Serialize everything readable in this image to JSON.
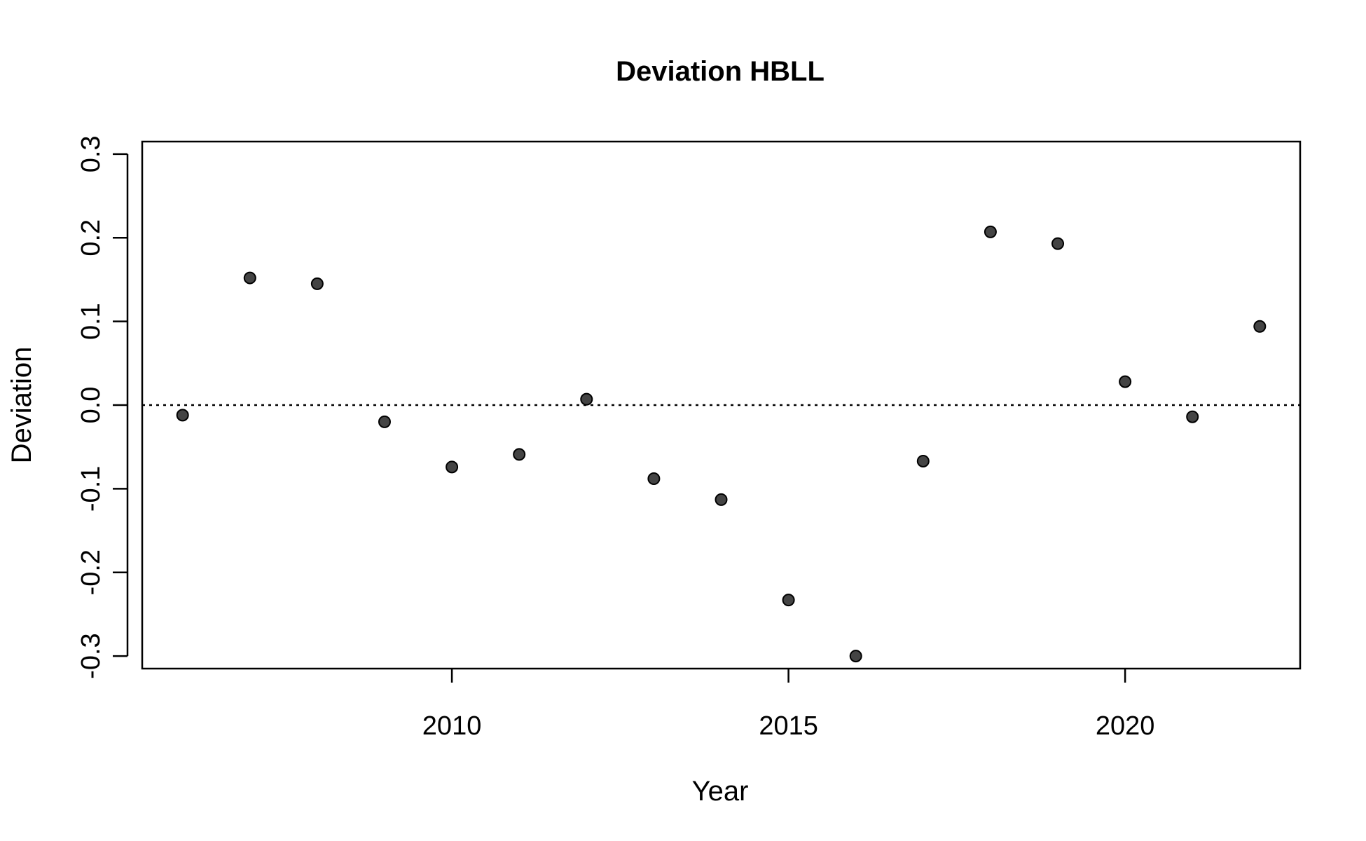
{
  "chart_data": {
    "type": "scatter",
    "title": "Deviation HBLL",
    "xlabel": "Year",
    "ylabel": "Deviation",
    "xlim": [
      2005.4,
      2022.6
    ],
    "ylim": [
      -0.315,
      0.315
    ],
    "x_ticks": [
      2010,
      2015,
      2020
    ],
    "x_tick_labels": [
      "2010",
      "2015",
      "2020"
    ],
    "y_ticks": [
      -0.3,
      -0.2,
      -0.1,
      0.0,
      0.1,
      0.2,
      0.3
    ],
    "y_tick_labels": [
      "-0.3",
      "-0.2",
      "-0.1",
      "0.0",
      "0.1",
      "0.2",
      "0.3"
    ],
    "reference_line": {
      "y": 0,
      "style": "dotted"
    },
    "grid": false,
    "point_color": "#444444",
    "series": [
      {
        "x": [
          2006,
          2007,
          2008,
          2009,
          2010,
          2011,
          2012,
          2013,
          2014,
          2015,
          2016,
          2017,
          2018,
          2019,
          2020,
          2021,
          2022
        ],
        "y": [
          -0.012,
          0.152,
          0.145,
          -0.02,
          -0.074,
          -0.059,
          0.007,
          -0.088,
          -0.113,
          -0.233,
          -0.3,
          -0.067,
          0.207,
          0.193,
          0.028,
          -0.014,
          0.094
        ]
      }
    ]
  }
}
